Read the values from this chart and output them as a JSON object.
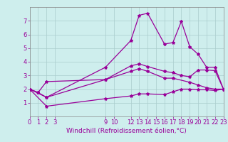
{
  "background_color": "#ceeeed",
  "grid_color": "#aacccc",
  "line_color": "#990099",
  "marker": "*",
  "markersize": 3,
  "linewidth": 0.9,
  "xlabel": "Windchill (Refroidissement éolien,°C)",
  "xlabel_fontsize": 6.5,
  "tick_fontsize": 6.0,
  "xlim": [
    0,
    23
  ],
  "ylim": [
    0,
    8
  ],
  "xticks": [
    0,
    1,
    2,
    3,
    9,
    10,
    12,
    13,
    14,
    15,
    16,
    17,
    18,
    19,
    20,
    21,
    22,
    23
  ],
  "yticks": [
    1,
    2,
    3,
    4,
    5,
    6,
    7
  ],
  "line1_x": [
    0,
    1,
    2,
    9,
    12,
    13,
    14,
    16,
    17,
    18,
    19,
    20,
    21,
    22,
    23
  ],
  "line1_y": [
    2.0,
    1.75,
    1.4,
    3.6,
    5.55,
    7.4,
    7.55,
    5.3,
    5.4,
    6.95,
    5.1,
    4.55,
    3.6,
    3.6,
    2.0
  ],
  "line2_x": [
    0,
    1,
    2,
    9,
    12,
    13,
    14,
    16,
    17,
    18,
    19,
    20,
    21,
    22,
    23
  ],
  "line2_y": [
    2.0,
    1.75,
    2.55,
    2.7,
    3.7,
    3.85,
    3.65,
    3.3,
    3.2,
    3.0,
    2.9,
    3.4,
    3.4,
    3.35,
    2.0
  ],
  "line3_x": [
    0,
    2,
    9,
    12,
    13,
    14,
    16,
    17,
    19,
    20,
    21,
    22,
    23
  ],
  "line3_y": [
    2.0,
    1.4,
    2.7,
    3.3,
    3.5,
    3.3,
    2.8,
    2.8,
    2.5,
    2.3,
    2.1,
    2.0,
    2.0
  ],
  "line4_x": [
    0,
    2,
    9,
    12,
    13,
    14,
    16,
    17,
    18,
    19,
    20,
    21,
    22,
    23
  ],
  "line4_y": [
    2.0,
    0.75,
    1.3,
    1.5,
    1.65,
    1.65,
    1.6,
    1.8,
    2.0,
    2.0,
    1.95,
    1.95,
    1.9,
    2.0
  ]
}
